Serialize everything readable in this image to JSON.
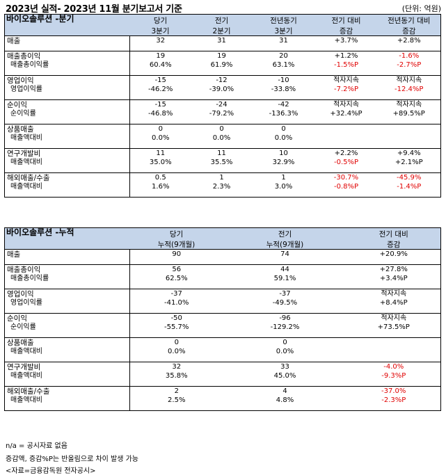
{
  "header": {
    "title": "2023년 실적- 2023년 11월 분기보고서 기준",
    "unit": "(단위: 억원)"
  },
  "quarter": {
    "title": "바이오솔루션 -분기",
    "cols": [
      [
        "당기",
        "3분기"
      ],
      [
        "전기",
        "2분기"
      ],
      [
        "전년동기",
        "3분기"
      ],
      [
        "전기 대비",
        "증감"
      ],
      [
        "전년동기 대비",
        "증감"
      ]
    ],
    "groups": [
      {
        "rows": [
          {
            "label": "매출",
            "v": [
              "32",
              "31",
              "31",
              "+3.7%",
              "+2.8%"
            ],
            "red": [
              false,
              false,
              false,
              false,
              false
            ]
          }
        ]
      },
      {
        "rows": [
          {
            "label": "매출총이익",
            "v": [
              "19",
              "19",
              "20",
              "+1.2%",
              "-1.6%"
            ],
            "red": [
              false,
              false,
              false,
              false,
              true
            ]
          },
          {
            "label": "매출총이익률",
            "sub": true,
            "v": [
              "60.4%",
              "61.9%",
              "63.1%",
              "-1.5%P",
              "-2.7%P"
            ],
            "red": [
              false,
              false,
              false,
              true,
              true
            ]
          }
        ]
      },
      {
        "rows": [
          {
            "label": "영업이익",
            "v": [
              "-15",
              "-12",
              "-10",
              "적자지속",
              "적자지속"
            ],
            "red": [
              false,
              false,
              false,
              false,
              false
            ]
          },
          {
            "label": "영업이익률",
            "sub": true,
            "v": [
              "-46.2%",
              "-39.0%",
              "-33.8%",
              "-7.2%P",
              "-12.4%P"
            ],
            "red": [
              false,
              false,
              false,
              true,
              true
            ]
          }
        ]
      },
      {
        "rows": [
          {
            "label": "순이익",
            "v": [
              "-15",
              "-24",
              "-42",
              "적자지속",
              "적자지속"
            ],
            "red": [
              false,
              false,
              false,
              false,
              false
            ]
          },
          {
            "label": "순이익률",
            "sub": true,
            "v": [
              "-46.8%",
              "-79.2%",
              "-136.3%",
              "+32.4%P",
              "+89.5%P"
            ],
            "red": [
              false,
              false,
              false,
              false,
              false
            ]
          }
        ]
      },
      {
        "rows": [
          {
            "label": "상품매출",
            "v": [
              "0",
              "0",
              "0",
              "",
              ""
            ],
            "red": [
              false,
              false,
              false,
              false,
              false
            ]
          },
          {
            "label": "매출액대비",
            "sub": true,
            "v": [
              "0.0%",
              "0.0%",
              "0.0%",
              "",
              ""
            ],
            "red": [
              false,
              false,
              false,
              false,
              false
            ]
          }
        ]
      },
      {
        "rows": [
          {
            "label": "연구개발비",
            "v": [
              "11",
              "11",
              "10",
              "+2.2%",
              "+9.4%"
            ],
            "red": [
              false,
              false,
              false,
              false,
              false
            ]
          },
          {
            "label": "매출액대비",
            "sub": true,
            "v": [
              "35.0%",
              "35.5%",
              "32.9%",
              "-0.5%P",
              "+2.1%P"
            ],
            "red": [
              false,
              false,
              false,
              true,
              false
            ]
          }
        ]
      },
      {
        "rows": [
          {
            "label": "해외매출/수출",
            "v": [
              "0.5",
              "1",
              "1",
              "-30.7%",
              "-45.9%"
            ],
            "red": [
              false,
              false,
              false,
              true,
              true
            ]
          },
          {
            "label": "매출액대비",
            "sub": true,
            "v": [
              "1.6%",
              "2.3%",
              "3.0%",
              "-0.8%P",
              "-1.4%P"
            ],
            "red": [
              false,
              false,
              false,
              true,
              true
            ]
          }
        ]
      }
    ]
  },
  "cumulative": {
    "title": "바이오솔루션 -누적",
    "cols": [
      [
        "당기",
        "누적(9개월)"
      ],
      [
        "전기",
        "누적(9개월)"
      ],
      [
        "전기 대비",
        "증감"
      ]
    ],
    "groups": [
      {
        "rows": [
          {
            "label": "매출",
            "v": [
              "90",
              "74",
              "+20.9%"
            ],
            "red": [
              false,
              false,
              false
            ]
          }
        ]
      },
      {
        "rows": [
          {
            "label": "매출총이익",
            "v": [
              "56",
              "44",
              "+27.8%"
            ],
            "red": [
              false,
              false,
              false
            ]
          },
          {
            "label": "매출총이익률",
            "sub": true,
            "v": [
              "62.5%",
              "59.1%",
              "+3.4%P"
            ],
            "red": [
              false,
              false,
              false
            ]
          }
        ]
      },
      {
        "rows": [
          {
            "label": "영업이익",
            "v": [
              "-37",
              "-37",
              "적자지속"
            ],
            "red": [
              false,
              false,
              false
            ]
          },
          {
            "label": "영업이익률",
            "sub": true,
            "v": [
              "-41.0%",
              "-49.5%",
              "+8.4%P"
            ],
            "red": [
              false,
              false,
              false
            ]
          }
        ]
      },
      {
        "rows": [
          {
            "label": "순이익",
            "v": [
              "-50",
              "-96",
              "적자지속"
            ],
            "red": [
              false,
              false,
              false
            ]
          },
          {
            "label": "순이익률",
            "sub": true,
            "v": [
              "-55.7%",
              "-129.2%",
              "+73.5%P"
            ],
            "red": [
              false,
              false,
              false
            ]
          }
        ]
      },
      {
        "rows": [
          {
            "label": "상품매출",
            "v": [
              "0",
              "0",
              ""
            ],
            "red": [
              false,
              false,
              false
            ]
          },
          {
            "label": "매출액대비",
            "sub": true,
            "v": [
              "0.0%",
              "0.0%",
              ""
            ],
            "red": [
              false,
              false,
              false
            ]
          }
        ]
      },
      {
        "rows": [
          {
            "label": "연구개발비",
            "v": [
              "32",
              "33",
              "-4.0%"
            ],
            "red": [
              false,
              false,
              true
            ]
          },
          {
            "label": "매출액대비",
            "sub": true,
            "v": [
              "35.8%",
              "45.0%",
              "-9.3%P"
            ],
            "red": [
              false,
              false,
              true
            ]
          }
        ]
      },
      {
        "rows": [
          {
            "label": "해외매출/수출",
            "v": [
              "2",
              "4",
              "-37.0%"
            ],
            "red": [
              false,
              false,
              true
            ]
          },
          {
            "label": "매출액대비",
            "sub": true,
            "v": [
              "2.5%",
              "4.8%",
              "-2.3%P"
            ],
            "red": [
              false,
              false,
              true
            ]
          }
        ]
      }
    ]
  },
  "footnotes": [
    "n/a = 공시자료 없음",
    "증감액, 증감%P는 반올림으로 차이 발생 가능",
    "<자료=금융감독원 전자공시>"
  ],
  "colors": {
    "header_bg": "#c5d5ea",
    "negative": "#e00000"
  }
}
